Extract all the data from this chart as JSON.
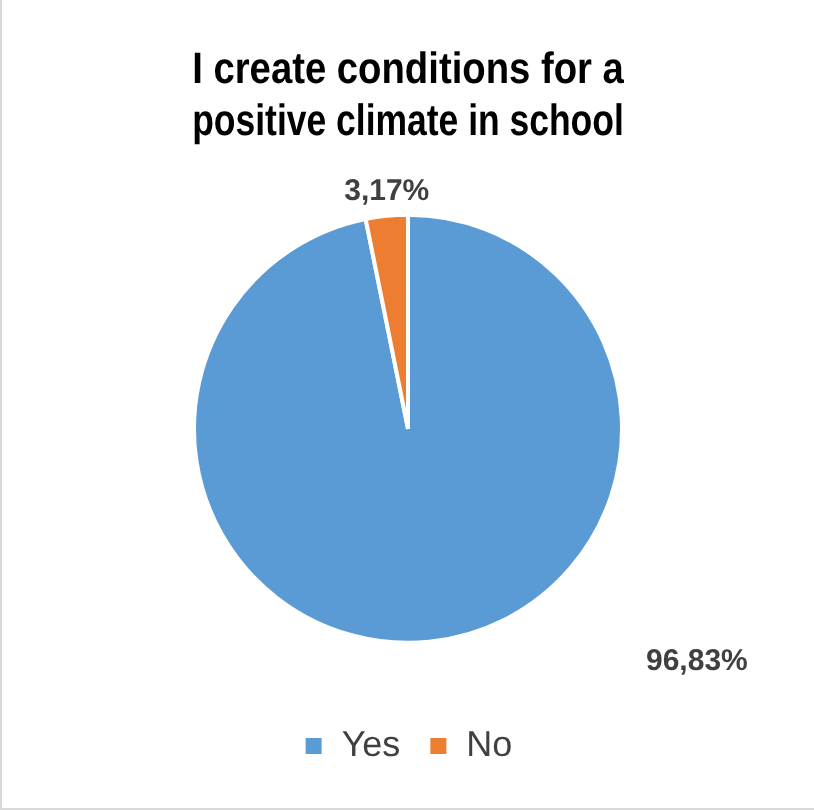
{
  "chart_data": {
    "type": "pie",
    "title": "I create conditions for a positive climate in school",
    "categories": [
      "Yes",
      "No"
    ],
    "values": [
      96.83,
      3.17
    ],
    "colors": [
      "#5b9bd5",
      "#ed7d31"
    ],
    "value_labels": [
      "96,83%",
      "3,17%"
    ],
    "legend": "bottom"
  }
}
